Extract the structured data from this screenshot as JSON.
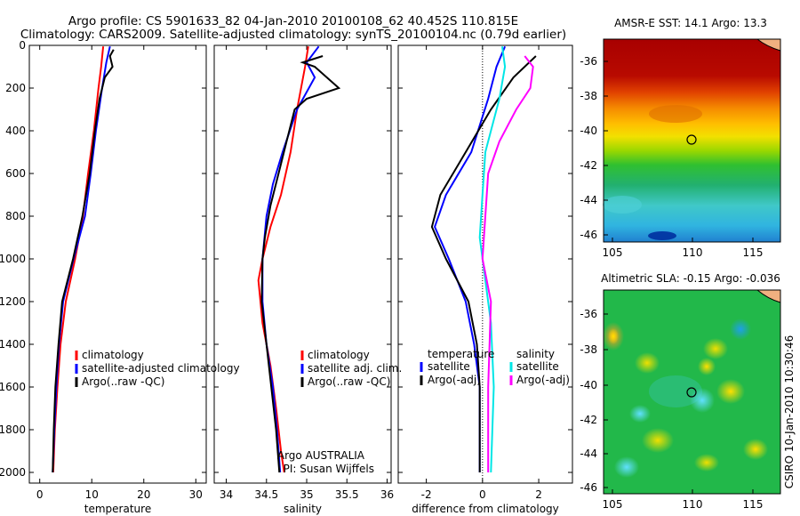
{
  "header": {
    "line1": "Argo profile: CS 5901633_82 04-Jan-2010 20100108_62 40.452S 110.815E",
    "line2": "Climatology: CARS2009. Satellite-adjusted climatology: synTS_20100104.nc (0.79d earlier)"
  },
  "colors": {
    "climatology": "#ff0000",
    "satellite": "#0000ff",
    "argo": "#000000",
    "sal_clim": "#00e6e6",
    "sal_argo": "#ff00ff"
  },
  "chart_data": [
    {
      "type": "line",
      "xlabel": "temperature",
      "xticks": [
        0,
        10,
        20,
        30
      ],
      "xlim": [
        -2,
        32
      ],
      "yticks": [
        0,
        200,
        400,
        600,
        800,
        1000,
        1200,
        1400,
        1600,
        1800,
        2000
      ],
      "ylim": [
        0,
        2050
      ],
      "legend": [
        "climatology",
        "satellite-adjusted climatology",
        "Argo(..raw -QC)"
      ],
      "series": [
        {
          "name": "climatology",
          "color": "#ff0000",
          "points": [
            [
              12.2,
              5
            ],
            [
              11.8,
              100
            ],
            [
              11.3,
              200
            ],
            [
              10.4,
              400
            ],
            [
              9.3,
              600
            ],
            [
              8.3,
              800
            ],
            [
              6.8,
              1000
            ],
            [
              5.0,
              1200
            ],
            [
              4.0,
              1400
            ],
            [
              3.4,
              1600
            ],
            [
              2.9,
              1800
            ],
            [
              2.6,
              2000
            ]
          ]
        },
        {
          "name": "satellite-adjusted climatology",
          "color": "#0000ff",
          "points": [
            [
              13.5,
              5
            ],
            [
              12.8,
              80
            ],
            [
              12.0,
              200
            ],
            [
              10.8,
              400
            ],
            [
              9.8,
              600
            ],
            [
              8.7,
              800
            ],
            [
              6.5,
              1000
            ],
            [
              4.5,
              1200
            ],
            [
              3.7,
              1400
            ],
            [
              3.2,
              1600
            ],
            [
              2.8,
              1800
            ],
            [
              2.5,
              2000
            ]
          ]
        },
        {
          "name": "Argo(..raw -QC)",
          "color": "#000000",
          "points": [
            [
              14.2,
              20
            ],
            [
              13.5,
              50
            ],
            [
              14.0,
              100
            ],
            [
              12.5,
              150
            ],
            [
              11.5,
              250
            ],
            [
              10.6,
              400
            ],
            [
              9.6,
              600
            ],
            [
              8.2,
              800
            ],
            [
              6.4,
              1000
            ],
            [
              4.3,
              1200
            ],
            [
              3.6,
              1400
            ],
            [
              3.0,
              1600
            ],
            [
              2.7,
              1800
            ],
            [
              2.5,
              2000
            ]
          ]
        }
      ]
    },
    {
      "type": "line",
      "xlabel": "salinity",
      "xticks": [
        34,
        34.5,
        35,
        35.5,
        36
      ],
      "xlim": [
        33.85,
        36.05
      ],
      "yticks": [
        0,
        200,
        400,
        600,
        800,
        1000,
        1200,
        1400,
        1600,
        1800,
        2000
      ],
      "ylim": [
        0,
        2050
      ],
      "legend": [
        "climatology",
        "satellite adj. clim.",
        "Argo(..raw -QC)"
      ],
      "annotation": [
        "Argo AUSTRALIA",
        "PI: Susan Wijffels"
      ],
      "series": [
        {
          "name": "climatology",
          "color": "#ff0000",
          "points": [
            [
              35.02,
              5
            ],
            [
              34.98,
              100
            ],
            [
              34.88,
              300
            ],
            [
              34.8,
              500
            ],
            [
              34.68,
              700
            ],
            [
              34.55,
              850
            ],
            [
              34.45,
              1000
            ],
            [
              34.4,
              1100
            ],
            [
              34.45,
              1300
            ],
            [
              34.55,
              1500
            ],
            [
              34.62,
              1700
            ],
            [
              34.68,
              1900
            ],
            [
              34.72,
              2000
            ]
          ]
        },
        {
          "name": "satellite adj. clim.",
          "color": "#0000ff",
          "points": [
            [
              35.15,
              5
            ],
            [
              35.0,
              80
            ],
            [
              35.1,
              150
            ],
            [
              34.88,
              300
            ],
            [
              34.7,
              500
            ],
            [
              34.58,
              650
            ],
            [
              34.5,
              800
            ],
            [
              34.45,
              1000
            ],
            [
              34.45,
              1200
            ],
            [
              34.5,
              1400
            ],
            [
              34.58,
              1600
            ],
            [
              34.63,
              1800
            ],
            [
              34.67,
              2000
            ]
          ]
        },
        {
          "name": "Argo(..raw -QC)",
          "color": "#000000",
          "points": [
            [
              35.2,
              50
            ],
            [
              34.95,
              80
            ],
            [
              35.1,
              100
            ],
            [
              35.4,
              200
            ],
            [
              35.0,
              250
            ],
            [
              34.85,
              300
            ],
            [
              34.75,
              450
            ],
            [
              34.65,
              600
            ],
            [
              34.55,
              750
            ],
            [
              34.48,
              900
            ],
            [
              34.45,
              1000
            ],
            [
              34.44,
              1200
            ],
            [
              34.5,
              1400
            ],
            [
              34.56,
              1600
            ],
            [
              34.62,
              1800
            ],
            [
              34.66,
              2000
            ]
          ]
        }
      ]
    },
    {
      "type": "line",
      "xlabel": "difference from climatology",
      "xticks": [
        -2,
        0,
        2
      ],
      "xlim": [
        -3.0,
        3.2
      ],
      "yticks": [
        0,
        200,
        400,
        600,
        800,
        1000,
        1200,
        1400,
        1600,
        1800,
        2000
      ],
      "ylim": [
        0,
        2050
      ],
      "legend_left_title": "temperature",
      "legend_left": [
        "satellite",
        "Argo(-adj)"
      ],
      "legend_right_title": "salinity",
      "legend_right": [
        "satellite",
        "Argo(-adj)"
      ],
      "series": [
        {
          "name": "temperature satellite",
          "color": "#0000ff",
          "points": [
            [
              0.8,
              5
            ],
            [
              0.5,
              100
            ],
            [
              0.2,
              250
            ],
            [
              -0.4,
              500
            ],
            [
              -1.3,
              700
            ],
            [
              -1.7,
              850
            ],
            [
              -1.2,
              1000
            ],
            [
              -0.6,
              1200
            ],
            [
              -0.3,
              1400
            ],
            [
              -0.1,
              1600
            ],
            [
              -0.1,
              2000
            ]
          ]
        },
        {
          "name": "temperature Argo(-adj)",
          "color": "#000000",
          "points": [
            [
              1.9,
              50
            ],
            [
              1.1,
              150
            ],
            [
              0.3,
              300
            ],
            [
              -0.6,
              500
            ],
            [
              -1.5,
              700
            ],
            [
              -1.8,
              850
            ],
            [
              -1.3,
              1000
            ],
            [
              -0.5,
              1200
            ],
            [
              -0.2,
              1400
            ],
            [
              -0.1,
              1600
            ],
            [
              -0.1,
              2000
            ]
          ]
        },
        {
          "name": "salinity satellite",
          "color": "#00e6e6",
          "points": [
            [
              0.7,
              5
            ],
            [
              0.8,
              100
            ],
            [
              0.6,
              250
            ],
            [
              0.3,
              400
            ],
            [
              0.1,
              500
            ],
            [
              0.0,
              700
            ],
            [
              -0.1,
              900
            ],
            [
              0.1,
              1100
            ],
            [
              0.3,
              1300
            ],
            [
              0.4,
              1600
            ],
            [
              0.3,
              2000
            ]
          ]
        },
        {
          "name": "salinity Argo(-adj)",
          "color": "#ff00ff",
          "points": [
            [
              1.5,
              50
            ],
            [
              1.8,
              100
            ],
            [
              1.7,
              200
            ],
            [
              1.2,
              300
            ],
            [
              0.6,
              450
            ],
            [
              0.2,
              600
            ],
            [
              0.1,
              800
            ],
            [
              0.0,
              1000
            ],
            [
              0.3,
              1200
            ],
            [
              0.2,
              1600
            ],
            [
              0.2,
              2000
            ]
          ]
        }
      ]
    }
  ],
  "maps": {
    "sst_title": "AMSR-E SST: 14.1 Argo: 13.3",
    "sla_title": "Altimetric SLA: -0.15 Argo: -0.036",
    "y_ticks": [
      "-36",
      "-38",
      "-40",
      "-42",
      "-44",
      "-46"
    ],
    "x_ticks": [
      "105",
      "110",
      "115"
    ]
  },
  "footer": {
    "credit": "CSIRO 10-Jan-2010 10:30:46"
  }
}
